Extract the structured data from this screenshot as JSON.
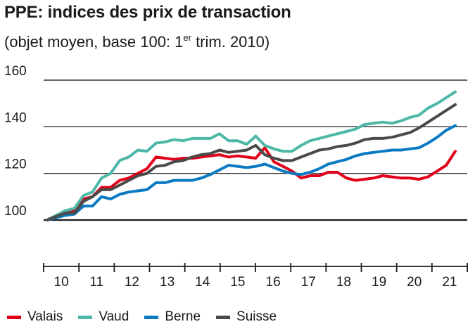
{
  "title": "PPE: indices des prix de transaction",
  "subtitle": {
    "before": "(objet moyen, base 100: 1",
    "sup": "er",
    "after": " trim. 2010)"
  },
  "chart_data": {
    "type": "line",
    "title": "PPE: indices des prix de transaction",
    "subtitle": "(objet moyen, base 100: 1er trim. 2010)",
    "xlabel": "",
    "ylabel": "",
    "x_ticks": [
      "10",
      "11",
      "12",
      "13",
      "14",
      "15",
      "16",
      "17",
      "18",
      "19",
      "20",
      "21"
    ],
    "y_ticks": [
      100,
      120,
      140,
      160
    ],
    "ylim": [
      100,
      160
    ],
    "grid": "horizontal",
    "legend_position": "bottom",
    "x": [
      "2010Q1",
      "2010Q2",
      "2010Q3",
      "2010Q4",
      "2011Q1",
      "2011Q2",
      "2011Q3",
      "2011Q4",
      "2012Q1",
      "2012Q2",
      "2012Q3",
      "2012Q4",
      "2013Q1",
      "2013Q2",
      "2013Q3",
      "2013Q4",
      "2014Q1",
      "2014Q2",
      "2014Q3",
      "2014Q4",
      "2015Q1",
      "2015Q2",
      "2015Q3",
      "2015Q4",
      "2016Q1",
      "2016Q2",
      "2016Q3",
      "2016Q4",
      "2017Q1",
      "2017Q2",
      "2017Q3",
      "2017Q4",
      "2018Q1",
      "2018Q2",
      "2018Q3",
      "2018Q4",
      "2019Q1",
      "2019Q2",
      "2019Q3",
      "2019Q4",
      "2020Q1",
      "2020Q2",
      "2020Q3",
      "2020Q4",
      "2021Q1",
      "2021Q2"
    ],
    "series": [
      {
        "name": "Valais",
        "color": "#e2001a",
        "values": [
          100,
          102,
          103,
          104,
          109,
          110,
          114,
          114,
          117,
          118,
          120,
          122,
          127,
          126.5,
          126,
          126.5,
          126.5,
          127,
          127.5,
          128,
          127,
          127.5,
          127,
          126.5,
          131,
          125,
          123,
          121,
          118,
          119,
          119,
          120.5,
          120.5,
          118,
          117,
          117.5,
          118,
          119,
          118.5,
          118,
          118,
          117.5,
          118.5,
          121,
          123.5,
          129.5
        ]
      },
      {
        "name": "Vaud",
        "color": "#4db8a8",
        "values": [
          100,
          102,
          104,
          105,
          110.5,
          112,
          118,
          120,
          125.5,
          127,
          130,
          129.5,
          133,
          133.5,
          134.5,
          134,
          135,
          135,
          135,
          137,
          134,
          134,
          132.5,
          136,
          132,
          130.5,
          129.5,
          129.5,
          132,
          134,
          135,
          136,
          137,
          138,
          139,
          141,
          141.5,
          142,
          141.5,
          142.5,
          144,
          145,
          148,
          150,
          152.5,
          155
        ]
      },
      {
        "name": "Berne",
        "color": "#0a7ac2",
        "values": [
          100,
          101,
          102,
          102.5,
          106,
          106,
          110,
          109,
          111,
          112,
          112.5,
          113,
          116,
          116,
          117,
          117,
          117,
          118,
          119.5,
          121.5,
          123.5,
          123,
          122.5,
          123,
          124,
          122.5,
          121,
          120,
          119.5,
          120.5,
          122,
          124,
          125,
          126,
          127.5,
          128.5,
          129,
          129.5,
          130,
          130,
          130.5,
          131,
          133,
          135.5,
          138.5,
          140.5
        ]
      },
      {
        "name": "Suisse",
        "color": "#4a4a4a",
        "values": [
          100,
          101.5,
          103,
          103,
          108,
          110,
          113,
          113,
          115,
          117,
          119,
          120,
          123,
          123.5,
          125,
          125.5,
          127,
          128,
          128.5,
          130,
          129,
          129.5,
          130,
          132,
          128,
          126.5,
          125.5,
          125.5,
          127,
          128.5,
          130,
          130.5,
          131.5,
          132,
          133,
          134.5,
          135,
          135,
          135.5,
          136.5,
          137.5,
          139.5,
          142,
          144.5,
          147,
          149.5
        ]
      }
    ]
  }
}
